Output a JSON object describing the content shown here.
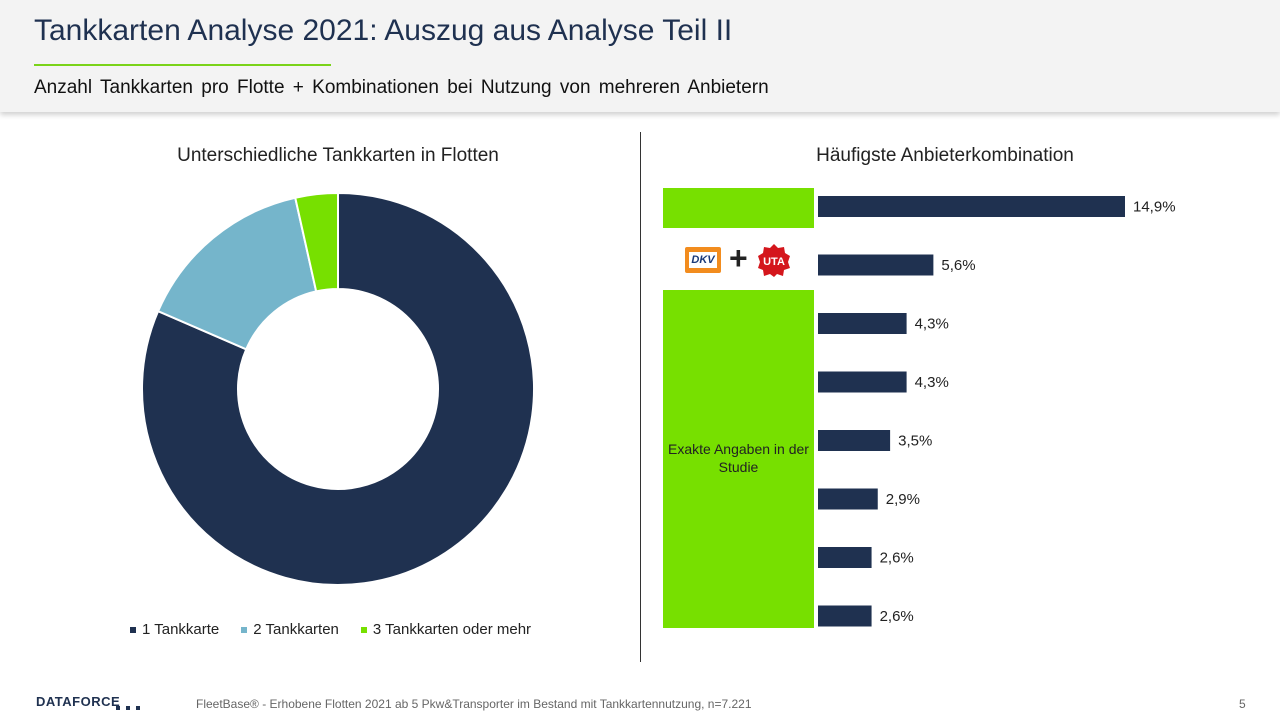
{
  "header": {
    "title": "Tankkarten Analyse 2021: Auszug aus Analyse Teil II",
    "subtitle": "Anzahl Tankkarten pro Flotte + Kombinationen bei Nutzung von mehreren Anbietern"
  },
  "colors": {
    "navy": "#1f3150",
    "light_blue": "#75b5cb",
    "green": "#77e000"
  },
  "chart_data": [
    {
      "type": "pie",
      "title": "Unterschiedliche Tankkarten in Flotten",
      "donut": true,
      "legend": "bottom",
      "categories": [
        "1 Tankkarte",
        "2 Tankkarten",
        "3 Tankkarten oder mehr"
      ],
      "values": [
        81.5,
        15.0,
        3.5
      ],
      "colors": [
        "#1f3150",
        "#75b5cb",
        "#77e000"
      ]
    },
    {
      "type": "bar",
      "orientation": "horizontal",
      "title": "Häufigste Anbieterkombination",
      "values": [
        14.9,
        5.6,
        4.3,
        4.3,
        3.5,
        2.9,
        2.6,
        2.6
      ],
      "labels": [
        "14,9%",
        "5,6%",
        "4,3%",
        "4,3%",
        "3,5%",
        "2,9%",
        "2,6%",
        "2,6%"
      ],
      "category_labels": [
        "",
        "DKV + UTA",
        "",
        "",
        "",
        "",
        "",
        ""
      ],
      "note": "Exakte Angaben in der Studie",
      "color": "#1f3150",
      "grid": false
    }
  ],
  "logos": {
    "dkv_text": "DKV",
    "plus": "+",
    "uta_text": "UTA"
  },
  "footer": {
    "logo": "DATAFORCE",
    "note": "FleetBase® - Erhobene Flotten 2021 ab 5 Pkw&Transporter im Bestand mit Tankkartennutzung, n=7.221",
    "page": "5"
  }
}
